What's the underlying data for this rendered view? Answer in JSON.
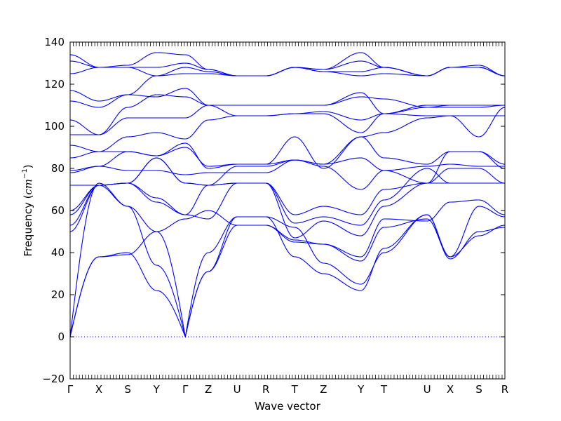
{
  "chart_data": {
    "type": "line",
    "title": "",
    "xlabel": "Wave vector",
    "ylabel": "Frequency",
    "ylabel_unit": "cm",
    "ylabel_unit_exp": "−1",
    "ylim": [
      -20,
      140
    ],
    "yticks": [
      -20,
      0,
      20,
      40,
      60,
      80,
      100,
      120,
      140
    ],
    "grid": false,
    "legend": "none",
    "line_color": "#0000ff",
    "zero_line_color": "#0000ff",
    "q_points": [
      {
        "label": "Γ",
        "x": 0.0
      },
      {
        "label": "X",
        "x": 0.5
      },
      {
        "label": "S",
        "x": 1.0
      },
      {
        "label": "Y",
        "x": 1.5
      },
      {
        "label": "Γ",
        "x": 2.0
      },
      {
        "label": "Z",
        "x": 2.4
      },
      {
        "label": "U",
        "x": 2.9
      },
      {
        "label": "R",
        "x": 3.4
      },
      {
        "label": "T",
        "x": 3.9
      },
      {
        "label": "Z",
        "x": 4.4
      },
      {
        "label": "Y",
        "x": 5.05
      },
      {
        "label": "T",
        "x": 5.45
      },
      {
        "label": "U",
        "x": 6.2
      },
      {
        "label": "X",
        "x": 6.6
      },
      {
        "label": "S",
        "x": 7.1
      },
      {
        "label": "R",
        "x": 7.55
      }
    ],
    "branch_nodes": [
      [
        0,
        38,
        39,
        50,
        0,
        40,
        57,
        57,
        52,
        35,
        25,
        40,
        58,
        38,
        48,
        53
      ],
      [
        0,
        38,
        40,
        22,
        0,
        31,
        57,
        57,
        38,
        30,
        22,
        42,
        58,
        37,
        50,
        52
      ],
      [
        0,
        73,
        62,
        34,
        0,
        31,
        53,
        53,
        46,
        44,
        36,
        52,
        56,
        38,
        62,
        57
      ],
      [
        50,
        72,
        62,
        50,
        56,
        60,
        53,
        53,
        45,
        44,
        38,
        56,
        55,
        64,
        65,
        58
      ],
      [
        53,
        72,
        73,
        64,
        58,
        56,
        73,
        73,
        47,
        55,
        48,
        62,
        73,
        73,
        73,
        73
      ],
      [
        58,
        72,
        73,
        66,
        58,
        72,
        73,
        73,
        54,
        57,
        53,
        65,
        80,
        73,
        73,
        73
      ],
      [
        60,
        72,
        73,
        85,
        73,
        72,
        73,
        73,
        58,
        62,
        58,
        70,
        73,
        80,
        80,
        73
      ],
      [
        72,
        72,
        73,
        85,
        73,
        72,
        81,
        81,
        84,
        81,
        70,
        79,
        73,
        88,
        88,
        80
      ],
      [
        78,
        81,
        79,
        79,
        77,
        78,
        78,
        78,
        84,
        82,
        85,
        79,
        81,
        82,
        81,
        81
      ],
      [
        79,
        81,
        88,
        86,
        90,
        81,
        82,
        82,
        84,
        82,
        95,
        85,
        82,
        88,
        88,
        82
      ],
      [
        85,
        88,
        88,
        86,
        92,
        80,
        82,
        82,
        95,
        80,
        95,
        97,
        104,
        105,
        95,
        109
      ],
      [
        91,
        88,
        95,
        97,
        94,
        103,
        105,
        105,
        106,
        106,
        97,
        106,
        105,
        105,
        105,
        105
      ],
      [
        96,
        96,
        104,
        104,
        104,
        110,
        105,
        105,
        106,
        107,
        103,
        106,
        109,
        110,
        110,
        110
      ],
      [
        103,
        96,
        109,
        115,
        114,
        110,
        110,
        110,
        110,
        110,
        116,
        106,
        110,
        110,
        110,
        110
      ],
      [
        112,
        109,
        115,
        114,
        118,
        110,
        110,
        110,
        110,
        110,
        114,
        113,
        109,
        109,
        109,
        110
      ],
      [
        117,
        112,
        115,
        124,
        125,
        125,
        124,
        124,
        128,
        126,
        124,
        125,
        124,
        128,
        128,
        124
      ],
      [
        125,
        128,
        128,
        124,
        128,
        126,
        124,
        124,
        128,
        126,
        126,
        128,
        124,
        128,
        128,
        124
      ],
      [
        131,
        128,
        128,
        128,
        130,
        127,
        124,
        124,
        128,
        127,
        131,
        128,
        124,
        128,
        128,
        124
      ],
      [
        134,
        128,
        129,
        135,
        134,
        127,
        124,
        124,
        128,
        127,
        135,
        128,
        124,
        128,
        129,
        124
      ]
    ]
  }
}
